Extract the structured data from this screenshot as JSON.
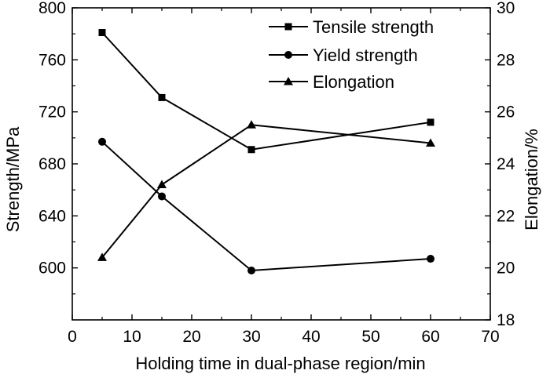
{
  "chart_data": {
    "type": "line",
    "xlabel": "Holding time in dual-phase region/min",
    "ylabel_left": "Strength/MPa",
    "ylabel_right": "Elongation/%",
    "x_ticks": [
      "0",
      "10",
      "20",
      "30",
      "40",
      "50",
      "60",
      "70"
    ],
    "y_left_ticks": [
      "600",
      "640",
      "680",
      "720",
      "760",
      "800"
    ],
    "y_right_ticks": [
      "18",
      "20",
      "22",
      "24",
      "26",
      "28",
      "30"
    ],
    "xlim": [
      0,
      70
    ],
    "ylim_left": [
      560,
      800
    ],
    "ylim_right": [
      18,
      30
    ],
    "x": [
      5,
      15,
      30,
      60
    ],
    "series": [
      {
        "name": "Tensile strength",
        "axis": "left",
        "marker": "square",
        "values": [
          781,
          731,
          691,
          712
        ]
      },
      {
        "name": "Yield strength",
        "axis": "left",
        "marker": "circle",
        "values": [
          697,
          655,
          598,
          607
        ]
      },
      {
        "name": "Elongation",
        "axis": "right",
        "marker": "triangle",
        "values": [
          20.4,
          23.2,
          25.5,
          24.8
        ]
      }
    ],
    "legend_position": "top-right",
    "grid": false
  }
}
